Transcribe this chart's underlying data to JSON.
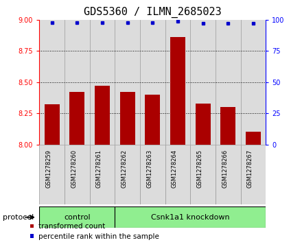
{
  "title": "GDS5360 / ILMN_2685023",
  "samples": [
    "GSM1278259",
    "GSM1278260",
    "GSM1278261",
    "GSM1278262",
    "GSM1278263",
    "GSM1278264",
    "GSM1278265",
    "GSM1278266",
    "GSM1278267"
  ],
  "bar_values": [
    8.32,
    8.42,
    8.47,
    8.42,
    8.4,
    8.86,
    8.33,
    8.3,
    8.1
  ],
  "percentile_values": [
    98,
    98,
    98,
    98,
    98,
    99,
    97,
    97,
    97
  ],
  "bar_color": "#AA0000",
  "percentile_color": "#0000CC",
  "ylim_left": [
    8.0,
    9.0
  ],
  "ylim_right": [
    0,
    100
  ],
  "yticks_left": [
    8.0,
    8.25,
    8.5,
    8.75,
    9.0
  ],
  "yticks_right": [
    0,
    25,
    50,
    75,
    100
  ],
  "grid_values": [
    8.25,
    8.5,
    8.75
  ],
  "control_samples": 3,
  "control_label": "control",
  "treatment_label": "Csnk1a1 knockdown",
  "protocol_label": "protocol",
  "legend_bar_label": "transformed count",
  "legend_pct_label": "percentile rank within the sample",
  "bg_color": "#DCDCDC",
  "cell_edge_color": "#999999",
  "control_color": "#90EE90",
  "treatment_color": "#90EE90",
  "title_fontsize": 11,
  "tick_fontsize": 7,
  "sample_fontsize": 6,
  "label_fontsize": 8
}
